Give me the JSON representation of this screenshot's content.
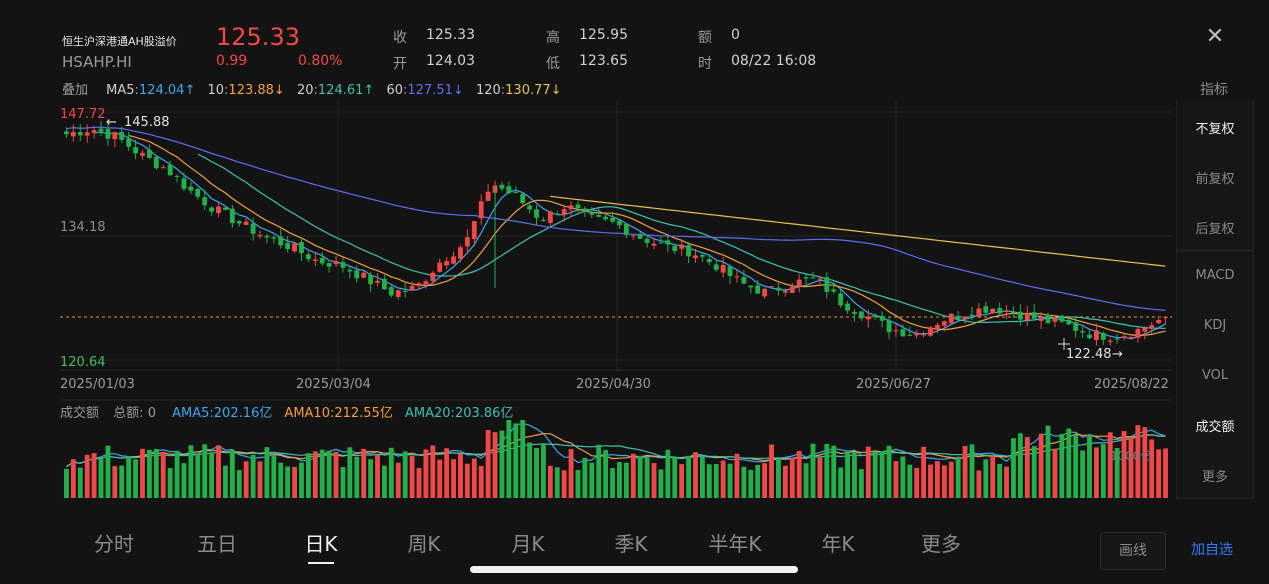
{
  "header": {
    "name": "恒生沪深港通AH股溢价",
    "code": "HSAHP.HI",
    "price": "125.33",
    "change": "0.99",
    "change_pct": "0.80%",
    "close_label": "收",
    "close_value": "125.33",
    "open_label": "开",
    "open_value": "124.03",
    "high_label": "高",
    "high_value": "125.95",
    "low_label": "低",
    "low_value": "123.65",
    "amount_label": "额",
    "amount_value": "0",
    "time_label": "时",
    "time_value": "08/22 16:08",
    "up_color": "#f04848",
    "icon_close": "close-icon"
  },
  "ma_bar": {
    "overlay_label": "叠加",
    "items": [
      {
        "label": "MA5",
        "value": "124.04",
        "arrow": "↑",
        "color": "#3ea6f0"
      },
      {
        "label": "10",
        "value": "123.88",
        "arrow": "↓",
        "color": "#f0a040"
      },
      {
        "label": "20",
        "value": "124.61",
        "arrow": "↑",
        "color": "#3fc0b0"
      },
      {
        "label": "60",
        "value": "127.51",
        "arrow": "↓",
        "color": "#5f6cf0"
      },
      {
        "label": "120",
        "value": "130.77",
        "arrow": "↓",
        "color": "#e8c050"
      }
    ]
  },
  "kline": {
    "y_high_label": "147.72",
    "y_mid_label": "134.18",
    "y_low_label": "120.64",
    "max_marker": "145.88",
    "min_marker": "122.48",
    "dates": [
      "2025/01/03",
      "2025/03/04",
      "2025/04/30",
      "2025/06/27",
      "2025/08/22"
    ]
  },
  "volume": {
    "title": "成交额",
    "total_label": "总额",
    "total_value": "0",
    "ama": [
      {
        "label": "AMA5",
        "value": "202.16亿",
        "color": "#3ea6f0"
      },
      {
        "label": "AMA10",
        "value": "212.55亿",
        "color": "#f0a040"
      },
      {
        "label": "AMA20",
        "value": "203.86亿",
        "color": "#3fc0b0"
      }
    ],
    "axis_label": "1000亿"
  },
  "side_panel": {
    "title": "指标",
    "items": [
      {
        "label": "不复权",
        "active": true
      },
      {
        "label": "前复权",
        "active": false
      },
      {
        "label": "后复权",
        "active": false
      },
      {
        "label": "MACD",
        "active": false
      },
      {
        "label": "KDJ",
        "active": false
      },
      {
        "label": "VOL",
        "active": false
      },
      {
        "label": "成交额",
        "active": true
      },
      {
        "label": "更多",
        "active": false
      }
    ]
  },
  "tabs": [
    {
      "label": "分时",
      "active": false
    },
    {
      "label": "五日",
      "active": false
    },
    {
      "label": "日K",
      "active": true
    },
    {
      "label": "周K",
      "active": false
    },
    {
      "label": "月K",
      "active": false
    },
    {
      "label": "季K",
      "active": false
    },
    {
      "label": "半年K",
      "active": false
    },
    {
      "label": "年K",
      "active": false
    },
    {
      "label": "更多",
      "active": false
    }
  ],
  "buttons": {
    "draw_line": "画线",
    "add_watchlist": "加自选"
  },
  "chart_data": {
    "type": "candlestick",
    "y_range": [
      120.64,
      147.72
    ],
    "highest_marker": 145.88,
    "lowest_marker": 122.48,
    "x_start": "2025/01/03",
    "x_end": "2025/08/22",
    "last_close": 125.33,
    "close_path": [
      145.3,
      145.9,
      145.0,
      143.0,
      141.5,
      139.0,
      137.0,
      135.5,
      134.0,
      133.0,
      131.5,
      131.0,
      129.5,
      128.0,
      128.5,
      131.5,
      133.5,
      140.0,
      138.5,
      136.0,
      137.5,
      136.0,
      135.5,
      134.0,
      133.0,
      132.5,
      131.0,
      129.0,
      128.0,
      129.0,
      129.5,
      127.0,
      125.5,
      124.0,
      123.5,
      125.0,
      125.8,
      126.4,
      125.8,
      125.0,
      124.5,
      123.5,
      123.2,
      124.0,
      125.33
    ]
  }
}
